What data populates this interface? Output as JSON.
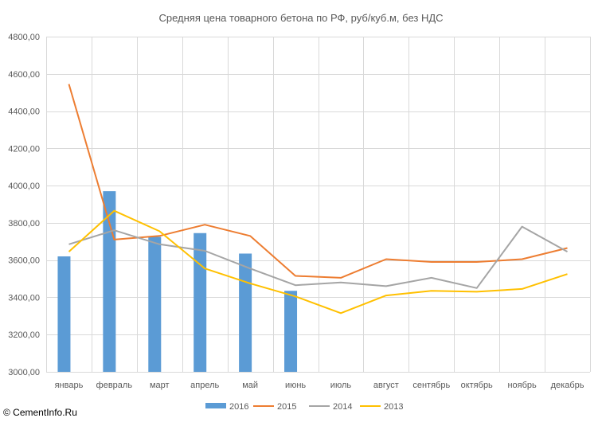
{
  "chart_data": {
    "type": "bar+line",
    "title": "Средняя цена товарного бетона по РФ, руб/куб.м, без НДС",
    "categories": [
      "январь",
      "февраль",
      "март",
      "апрель",
      "май",
      "июнь",
      "июль",
      "август",
      "сентябрь",
      "октябрь",
      "ноябрь",
      "декабрь"
    ],
    "ylim": [
      3000,
      4800
    ],
    "yticks": [
      "3000,00",
      "3200,00",
      "3400,00",
      "3600,00",
      "3800,00",
      "4000,00",
      "4200,00",
      "4400,00",
      "4600,00",
      "4800,00"
    ],
    "grid": true,
    "legend_position": "bottom",
    "series": [
      {
        "name": "2016",
        "type": "bar",
        "color": "#5B9BD5",
        "values": [
          3620,
          3970,
          3725,
          3745,
          3635,
          3435,
          null,
          null,
          null,
          null,
          null,
          null
        ]
      },
      {
        "name": "2015",
        "type": "line",
        "color": "#ED7D31",
        "values": [
          4545,
          3710,
          3730,
          3790,
          3730,
          3515,
          3505,
          3605,
          3590,
          3590,
          3605,
          3665
        ]
      },
      {
        "name": "2014",
        "type": "line",
        "color": "#A5A5A5",
        "values": [
          3685,
          3760,
          3685,
          3650,
          3555,
          3465,
          3480,
          3460,
          3505,
          3450,
          3780,
          3645
        ]
      },
      {
        "name": "2013",
        "type": "line",
        "color": "#FFC000",
        "values": [
          3645,
          3865,
          3755,
          3555,
          3475,
          3405,
          3315,
          3410,
          3435,
          3430,
          3445,
          3525
        ]
      }
    ]
  },
  "credit": "© CementInfo.Ru"
}
